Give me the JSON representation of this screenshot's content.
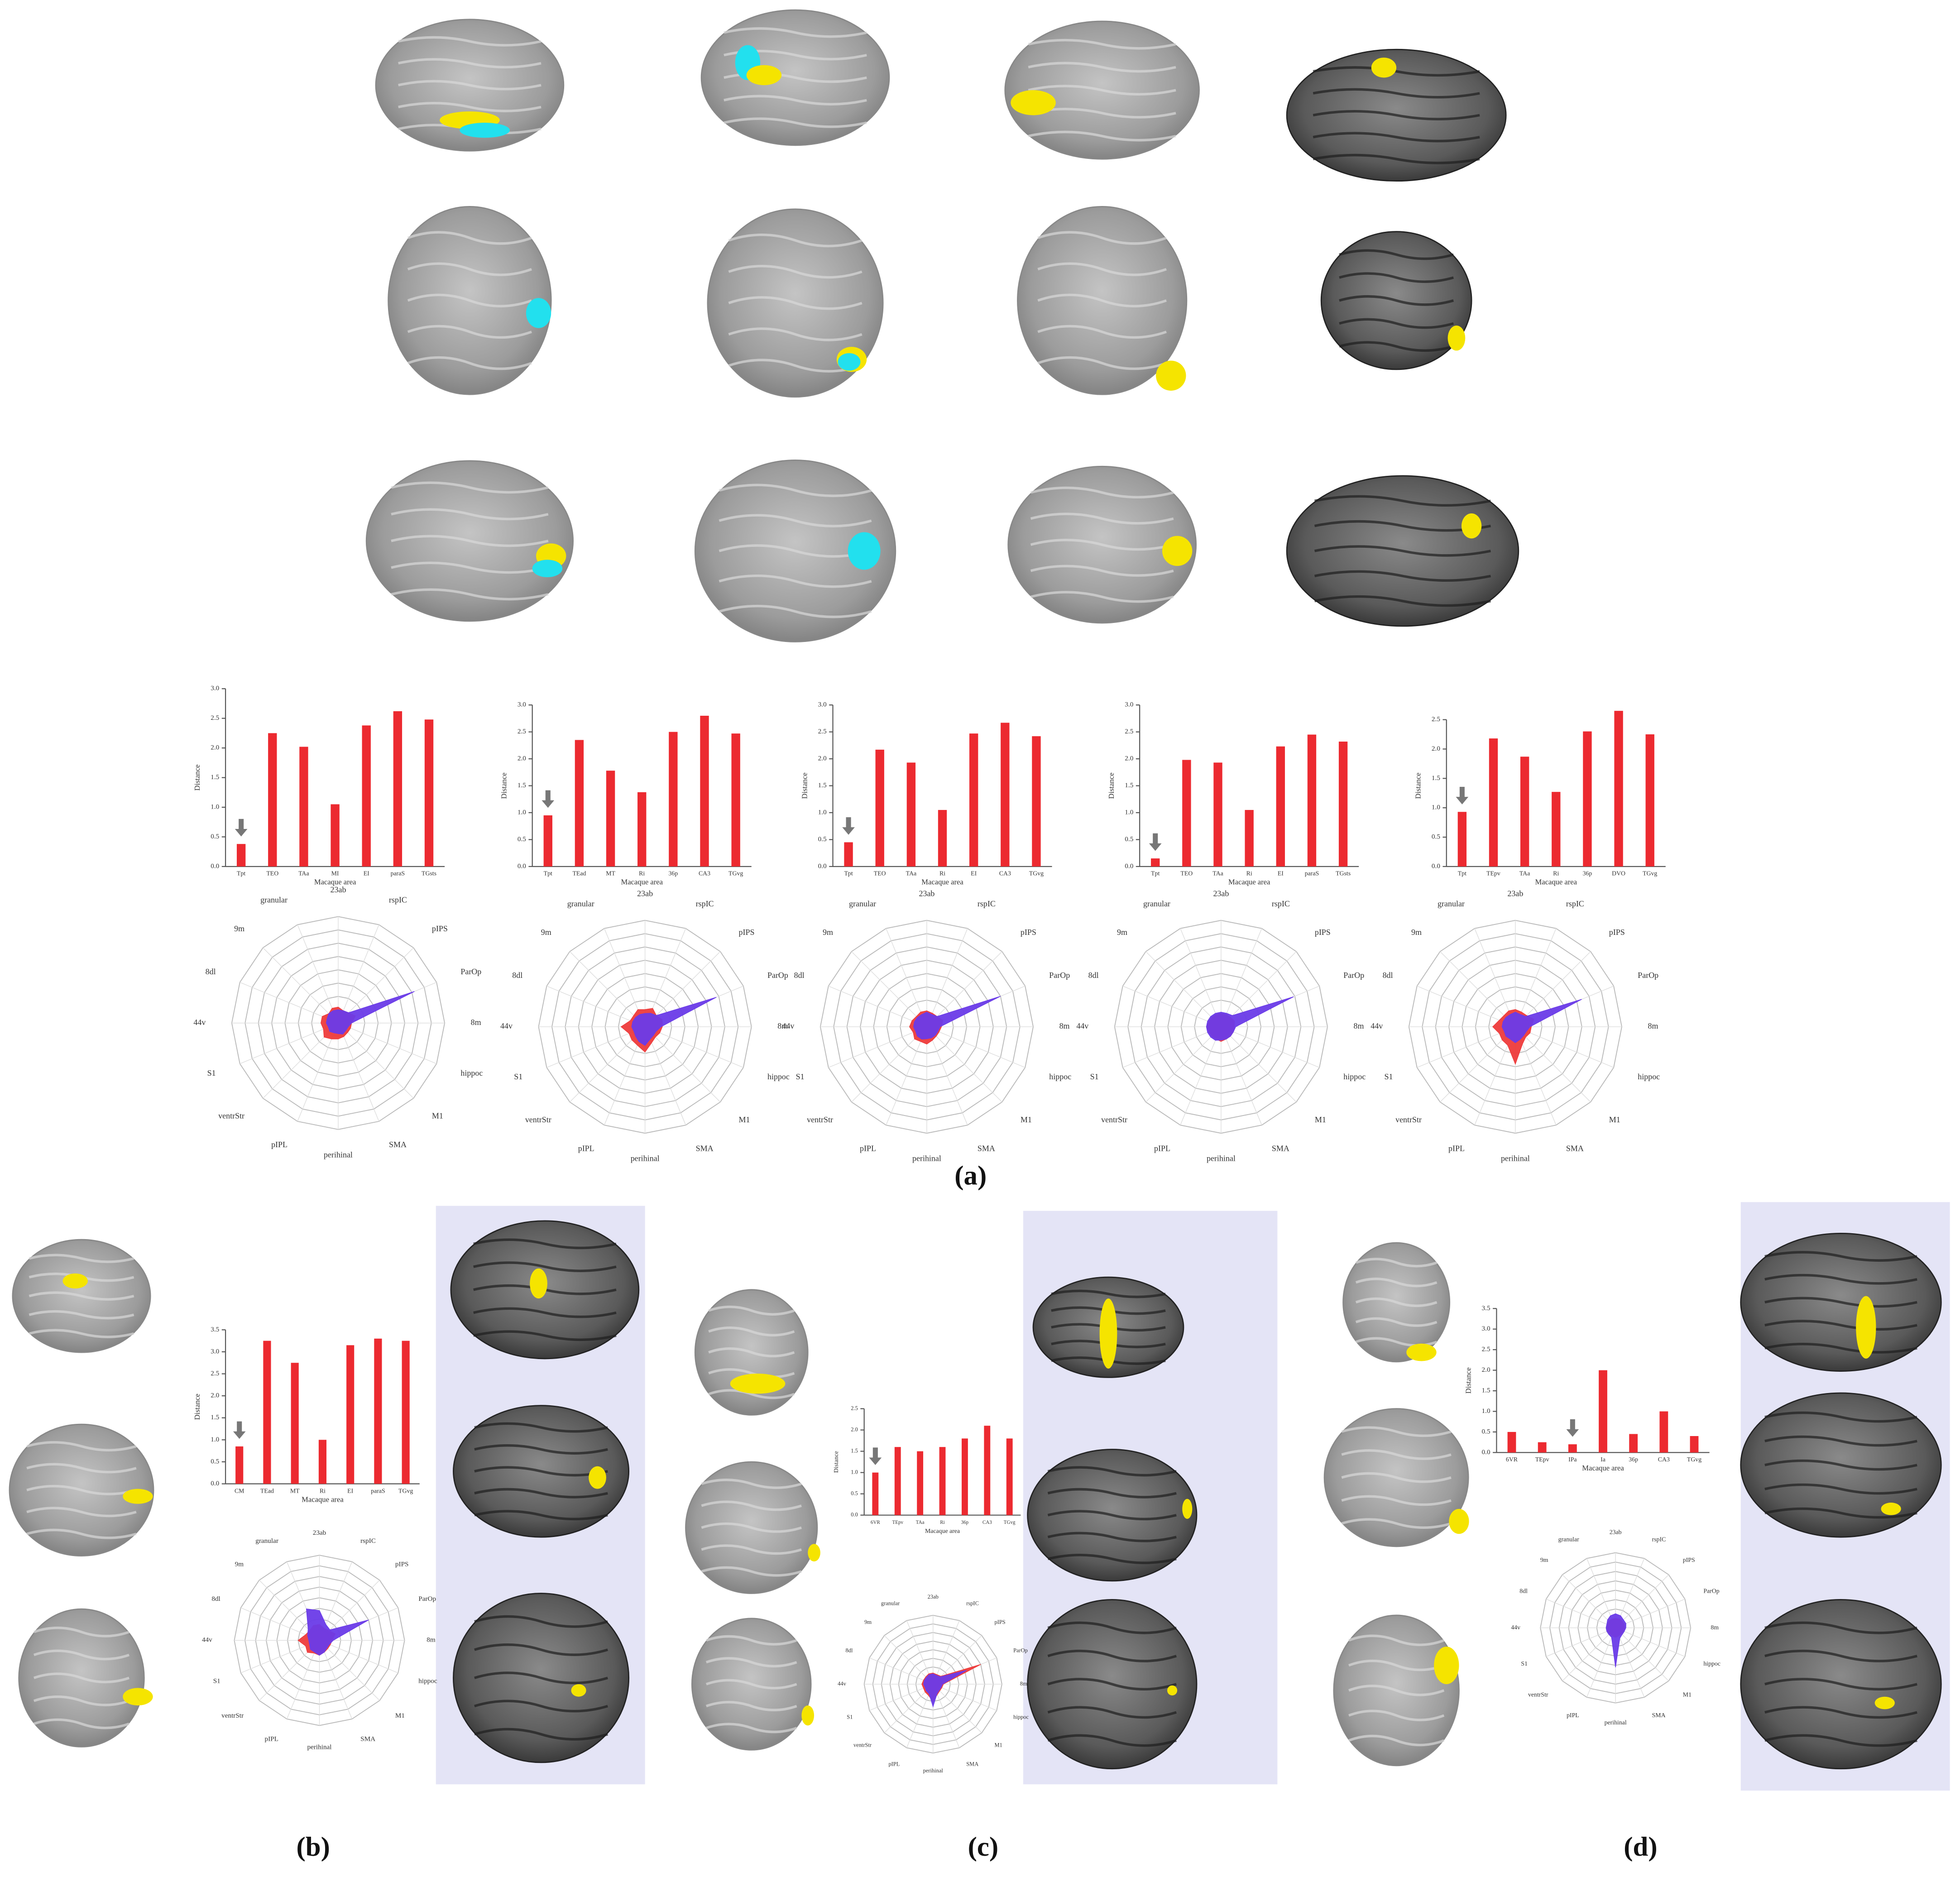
{
  "panel_labels": [
    "(a)",
    "(b)",
    "(c)",
    "(d)"
  ],
  "chart_data": [
    {
      "type": "bar",
      "ylabel": "Distance",
      "xlabel": "Macaque area",
      "color": "#ec2a30",
      "categories": [
        "Tpt",
        "TEO",
        "TAa",
        "MI",
        "EI",
        "paraS",
        "TGsts"
      ],
      "values": [
        0.38,
        2.25,
        2.02,
        1.05,
        2.38,
        2.62,
        2.48
      ],
      "ylim": [
        0,
        3
      ],
      "yticks": [
        {
          "value": 0,
          "label": "0.0"
        },
        {
          "value": 0.5,
          "label": "0.5"
        },
        {
          "value": 1,
          "label": "1.0"
        },
        {
          "value": 1.5,
          "label": "1.5"
        },
        {
          "value": 2,
          "label": "2.0"
        },
        {
          "value": 2.5,
          "label": "2.5"
        },
        {
          "value": 3,
          "label": "3.0"
        }
      ]
    },
    {
      "type": "bar",
      "ylabel": "Distance",
      "xlabel": "Macaque area",
      "color": "#ec2a30",
      "categories": [
        "Tpt",
        "TEad",
        "MT",
        "Ri",
        "36p",
        "CA3",
        "TGvg"
      ],
      "values": [
        0.95,
        2.35,
        1.78,
        1.38,
        2.5,
        2.8,
        2.47
      ],
      "ylim": [
        0,
        3
      ],
      "yticks": [
        {
          "value": 0,
          "label": "0.0"
        },
        {
          "value": 0.5,
          "label": "0.5"
        },
        {
          "value": 1,
          "label": "1.0"
        },
        {
          "value": 1.5,
          "label": "1.5"
        },
        {
          "value": 2,
          "label": "2.0"
        },
        {
          "value": 2.5,
          "label": "2.5"
        },
        {
          "value": 3,
          "label": "3.0"
        }
      ]
    },
    {
      "type": "bar",
      "ylabel": "Distance",
      "xlabel": "Macaque area",
      "color": "#ec2a30",
      "categories": [
        "Tpt",
        "TEO",
        "TAa",
        "Ri",
        "EI",
        "CA3",
        "TGvg"
      ],
      "values": [
        0.45,
        2.17,
        1.93,
        1.05,
        2.47,
        2.67,
        2.42
      ],
      "ylim": [
        0,
        3
      ],
      "yticks": [
        {
          "value": 0,
          "label": "0.0"
        },
        {
          "value": 0.5,
          "label": "0.5"
        },
        {
          "value": 1,
          "label": "1.0"
        },
        {
          "value": 1.5,
          "label": "1.5"
        },
        {
          "value": 2,
          "label": "2.0"
        },
        {
          "value": 2.5,
          "label": "2.5"
        },
        {
          "value": 3,
          "label": "3.0"
        }
      ]
    },
    {
      "type": "bar",
      "ylabel": "Distance",
      "xlabel": "Macaque area",
      "color": "#ec2a30",
      "categories": [
        "Tpt",
        "TEO",
        "TAa",
        "Ri",
        "EI",
        "paraS",
        "TGsts"
      ],
      "values": [
        0.15,
        1.98,
        1.93,
        1.05,
        2.23,
        2.45,
        2.32
      ],
      "ylim": [
        0,
        3
      ],
      "yticks": [
        {
          "value": 0,
          "label": "0.0"
        },
        {
          "value": 0.5,
          "label": "0.5"
        },
        {
          "value": 1,
          "label": "1.0"
        },
        {
          "value": 1.5,
          "label": "1.5"
        },
        {
          "value": 2,
          "label": "2.0"
        },
        {
          "value": 2.5,
          "label": "2.5"
        },
        {
          "value": 3,
          "label": "3.0"
        }
      ]
    },
    {
      "type": "bar",
      "ylabel": "Distance",
      "xlabel": "Macaque area",
      "color": "#ec2a30",
      "categories": [
        "Tpt",
        "TEpv",
        "TAa",
        "Ri",
        "36p",
        "DVO",
        "TGvg"
      ],
      "values": [
        0.93,
        2.18,
        1.87,
        1.27,
        2.3,
        2.65,
        2.25
      ],
      "ylim": [
        0,
        2.75
      ],
      "yticks": [
        {
          "value": 0,
          "label": "0.0"
        },
        {
          "value": 0.5,
          "label": "0.5"
        },
        {
          "value": 1,
          "label": "1.0"
        },
        {
          "value": 1.5,
          "label": "1.5"
        },
        {
          "value": 2,
          "label": "2.0"
        },
        {
          "value": 2.5,
          "label": "2.5"
        }
      ]
    },
    {
      "type": "bar",
      "ylabel": "Distance",
      "xlabel": "Macaque area",
      "color": "#ec2a30",
      "categories": [
        "CM",
        "TEad",
        "MT",
        "Ri",
        "EI",
        "paraS",
        "TGvg"
      ],
      "values": [
        0.85,
        3.25,
        2.75,
        1.0,
        3.15,
        3.3,
        3.25
      ],
      "ylim": [
        0,
        3.5
      ],
      "yticks": [
        {
          "value": 0,
          "label": "0.0"
        },
        {
          "value": 0.5,
          "label": "0.5"
        },
        {
          "value": 1,
          "label": "1.0"
        },
        {
          "value": 1.5,
          "label": "1.5"
        },
        {
          "value": 2,
          "label": "2.0"
        },
        {
          "value": 2.5,
          "label": "2.5"
        },
        {
          "value": 3,
          "label": "3.0"
        },
        {
          "value": 3.5,
          "label": "3.5"
        }
      ]
    },
    {
      "type": "bar",
      "ylabel": "Distance",
      "xlabel": "Macaque area",
      "color": "#ec2a30",
      "categories": [
        "6VR",
        "TEpv",
        "TAa",
        "Ri",
        "36p",
        "CA3",
        "TGvg"
      ],
      "values": [
        1.0,
        1.6,
        1.5,
        1.6,
        1.8,
        2.1,
        1.8
      ],
      "ylim": [
        0,
        2.5
      ],
      "yticks": [
        {
          "value": 0,
          "label": "0.0"
        },
        {
          "value": 0.5,
          "label": "0.5"
        },
        {
          "value": 1,
          "label": "1.0"
        },
        {
          "value": 1.5,
          "label": "1.5"
        },
        {
          "value": 2,
          "label": "2.0"
        },
        {
          "value": 2.5,
          "label": "2.5"
        }
      ]
    },
    {
      "type": "bar",
      "ylabel": "Distance",
      "xlabel": "Macaque area",
      "color": "#ec2a30",
      "categories": [
        "6VR",
        "TEpv",
        "IPa",
        "Ia",
        "36p",
        "CA3",
        "TGvg"
      ],
      "values": [
        0.5,
        0.25,
        0.2,
        2.0,
        0.45,
        1.0,
        0.4
      ],
      "ylim": [
        0,
        3.5
      ],
      "yticks": [
        {
          "value": 0,
          "label": "0.0"
        },
        {
          "value": 0.5,
          "label": "0.5"
        },
        {
          "value": 1,
          "label": "1.0"
        },
        {
          "value": 1.5,
          "label": "1.5"
        },
        {
          "value": 2,
          "label": "2.0"
        },
        {
          "value": 2.5,
          "label": "2.5"
        },
        {
          "value": 3,
          "label": "3.0"
        },
        {
          "value": 3.5,
          "label": "3.5"
        }
      ]
    },
    {
      "type": "radar",
      "axes": [
        "23ab",
        "rspIC",
        "pIPS",
        "ParOp",
        "8m",
        "hippoc",
        "M1",
        "SMA",
        "perihinal",
        "pIPL",
        "ventrStr",
        "S1",
        "44v",
        "8dl",
        "9m",
        "granular"
      ],
      "rlim": [
        0,
        8
      ],
      "rticks": [
        1,
        2,
        3,
        4,
        5,
        6,
        7,
        8
      ],
      "series": [
        {
          "color": "#ee3b3b",
          "values": [
            1.2,
            1.0,
            1.1,
            1.4,
            1.0,
            1.0,
            1.0,
            1.1,
            1.2,
            1.3,
            1.5,
            1.2,
            1.3,
            1.3,
            1.0,
            1.2
          ]
        },
        {
          "color": "#6a3be8",
          "values": [
            1.0,
            1.0,
            1.1,
            6.2,
            1.0,
            0.8,
            0.8,
            0.9,
            0.8,
            0.8,
            0.9,
            0.8,
            0.9,
            0.9,
            1.0,
            1.0
          ]
        }
      ]
    },
    {
      "type": "radar",
      "axes": [
        "23ab",
        "rspIC",
        "pIPS",
        "ParOp",
        "8m",
        "hippoc",
        "M1",
        "SMA",
        "perihinal",
        "pIPL",
        "ventrStr",
        "S1",
        "44v",
        "8dl",
        "9m",
        "granular"
      ],
      "rlim": [
        0,
        8
      ],
      "rticks": [
        1,
        2,
        3,
        4,
        5,
        6,
        7,
        8
      ],
      "series": [
        {
          "color": "#ee3b3b",
          "values": [
            1.3,
            1.5,
            1.2,
            1.4,
            1.3,
            1.2,
            1.1,
            1.3,
            1.9,
            1.5,
            1.4,
            1.3,
            1.8,
            1.2,
            1.2,
            1.4
          ]
        },
        {
          "color": "#6a3be8",
          "values": [
            1.0,
            1.1,
            1.2,
            5.8,
            1.2,
            0.9,
            0.9,
            1.0,
            1.4,
            1.2,
            1.0,
            0.9,
            1.0,
            1.0,
            1.0,
            1.0
          ]
        }
      ]
    },
    {
      "type": "radar",
      "axes": [
        "23ab",
        "rspIC",
        "pIPS",
        "ParOp",
        "8m",
        "hippoc",
        "M1",
        "SMA",
        "perihinal",
        "pIPL",
        "ventrStr",
        "S1",
        "44v",
        "8dl",
        "9m",
        "granular"
      ],
      "rlim": [
        0,
        8
      ],
      "rticks": [
        1,
        2,
        3,
        4,
        5,
        6,
        7,
        8
      ],
      "series": [
        {
          "color": "#ee3b3b",
          "values": [
            1.2,
            1.1,
            1.1,
            1.3,
            1.1,
            1.0,
            1.0,
            1.1,
            1.3,
            1.2,
            1.3,
            1.1,
            1.3,
            1.2,
            1.1,
            1.2
          ]
        },
        {
          "color": "#6a3be8",
          "values": [
            1.1,
            1.0,
            1.1,
            6.0,
            1.0,
            0.9,
            0.9,
            0.9,
            0.9,
            1.0,
            1.0,
            0.9,
            1.0,
            1.0,
            1.0,
            1.0
          ]
        }
      ]
    },
    {
      "type": "radar",
      "axes": [
        "23ab",
        "rspIC",
        "pIPS",
        "ParOp",
        "8m",
        "hippoc",
        "M1",
        "SMA",
        "perihinal",
        "pIPL",
        "ventrStr",
        "S1",
        "44v",
        "8dl",
        "9m",
        "granular"
      ],
      "rlim": [
        0,
        8
      ],
      "rticks": [
        1,
        2,
        3,
        4,
        5,
        6,
        7,
        8
      ],
      "series": [
        {
          "color": "#ee3b3b",
          "values": [
            1.0,
            1.0,
            1.0,
            1.1,
            1.0,
            1.0,
            1.0,
            1.0,
            1.1,
            1.0,
            1.0,
            1.0,
            1.1,
            1.0,
            1.0,
            1.0
          ]
        },
        {
          "color": "#6a3be8",
          "values": [
            1.1,
            1.1,
            1.2,
            5.9,
            1.1,
            1.0,
            1.0,
            1.0,
            1.0,
            1.1,
            1.1,
            1.1,
            1.1,
            1.1,
            1.1,
            1.1
          ]
        }
      ]
    },
    {
      "type": "radar",
      "axes": [
        "23ab",
        "rspIC",
        "pIPS",
        "ParOp",
        "8m",
        "hippoc",
        "M1",
        "SMA",
        "perihinal",
        "pIPL",
        "ventrStr",
        "S1",
        "44v",
        "8dl",
        "9m",
        "granular"
      ],
      "rlim": [
        0,
        8
      ],
      "rticks": [
        1,
        2,
        3,
        4,
        5,
        6,
        7,
        8
      ],
      "series": [
        {
          "color": "#ee3b3b",
          "values": [
            1.3,
            1.2,
            1.2,
            1.5,
            1.2,
            1.2,
            1.1,
            1.4,
            2.8,
            1.5,
            1.4,
            1.3,
            1.7,
            1.3,
            1.2,
            1.3
          ]
        },
        {
          "color": "#6a3be8",
          "values": [
            1.1,
            1.0,
            1.1,
            5.4,
            1.1,
            0.9,
            0.9,
            1.0,
            1.2,
            1.0,
            1.0,
            0.9,
            1.0,
            1.0,
            1.0,
            1.0
          ]
        }
      ]
    },
    {
      "type": "radar",
      "axes": [
        "23ab",
        "rspIC",
        "pIPS",
        "ParOp",
        "8m",
        "hippoc",
        "M1",
        "SMA",
        "perihinal",
        "pIPL",
        "ventrStr",
        "S1",
        "44v",
        "8dl",
        "9m",
        "granular"
      ],
      "rlim": [
        0,
        8
      ],
      "rticks": [
        1,
        2,
        3,
        4,
        5,
        6,
        7,
        8
      ],
      "series": [
        {
          "color": "#ee3b3b",
          "values": [
            1.5,
            1.2,
            1.3,
            1.6,
            1.2,
            1.1,
            1.1,
            1.2,
            1.4,
            1.3,
            1.6,
            1.4,
            2.0,
            1.4,
            1.3,
            1.5
          ]
        },
        {
          "color": "#6a3be8",
          "values": [
            2.8,
            1.6,
            1.4,
            5.0,
            1.3,
            1.0,
            1.0,
            1.2,
            1.4,
            1.2,
            1.2,
            1.0,
            1.0,
            1.2,
            1.5,
            3.2
          ]
        }
      ]
    },
    {
      "type": "radar",
      "axes": [
        "23ab",
        "rspIC",
        "pIPS",
        "ParOp",
        "8m",
        "hippoc",
        "M1",
        "SMA",
        "perihinal",
        "pIPL",
        "ventrStr",
        "S1",
        "44v",
        "8dl",
        "9m",
        "granular"
      ],
      "rlim": [
        0,
        8
      ],
      "rticks": [
        1,
        2,
        3,
        4,
        5,
        6,
        7,
        8
      ],
      "series": [
        {
          "color": "#ee3b3b",
          "values": [
            1.3,
            1.2,
            1.3,
            6.0,
            1.2,
            1.1,
            1.1,
            1.3,
            2.0,
            1.4,
            1.3,
            1.2,
            1.3,
            1.2,
            1.2,
            1.3
          ]
        },
        {
          "color": "#6a3be8",
          "values": [
            1.2,
            1.1,
            1.2,
            4.2,
            1.1,
            1.0,
            1.0,
            1.2,
            2.6,
            1.2,
            1.1,
            1.0,
            1.1,
            1.1,
            1.1,
            1.2
          ]
        }
      ]
    },
    {
      "type": "radar",
      "axes": [
        "23ab",
        "rspIC",
        "pIPS",
        "ParOp",
        "8m",
        "hippoc",
        "M1",
        "SMA",
        "perihinal",
        "pIPL",
        "ventrStr",
        "S1",
        "44v",
        "8dl",
        "9m",
        "granular"
      ],
      "rlim": [
        0,
        8
      ],
      "rticks": [
        1,
        2,
        3,
        4,
        5,
        6,
        7,
        8
      ],
      "series": [
        {
          "color": "#ee3b3b",
          "values": [
            1.0,
            1.0,
            1.0,
            1.0,
            1.0,
            0.9,
            0.9,
            0.9,
            1.0,
            0.9,
            0.9,
            0.9,
            0.9,
            0.9,
            1.0,
            1.0
          ]
        },
        {
          "color": "#6a3be8",
          "values": [
            1.5,
            1.4,
            1.2,
            1.2,
            1.1,
            1.0,
            1.0,
            1.2,
            4.2,
            1.1,
            1.0,
            1.0,
            1.0,
            1.0,
            1.2,
            1.4
          ]
        }
      ]
    }
  ]
}
